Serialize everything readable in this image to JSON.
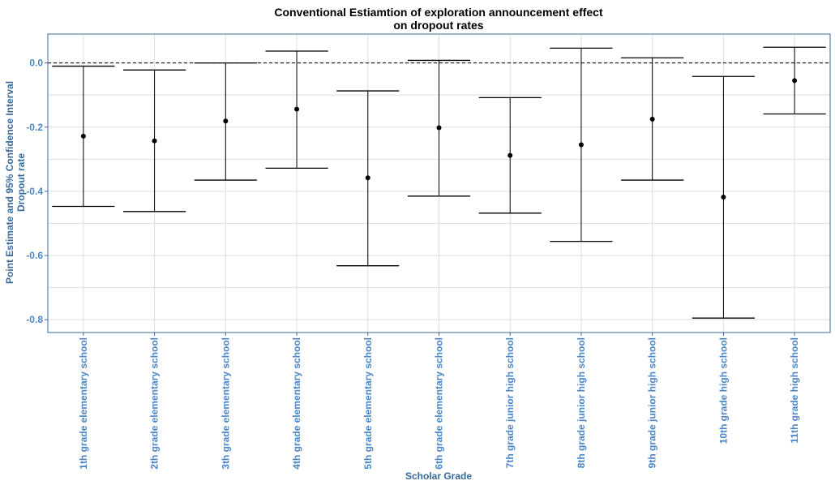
{
  "chart_data": {
    "type": "errorbar",
    "title": [
      "Conventional Estiamtion of exploration announcement effect",
      "on dropout rates"
    ],
    "xlabel": "Scholar Grade",
    "ylabel": [
      "Point Estimate and 95% Confidence Interval",
      "Dropout rate"
    ],
    "ylim": [
      -0.84,
      0.09
    ],
    "yticks": [
      0.0,
      -0.2,
      -0.4,
      -0.6,
      -0.8
    ],
    "ytick_labels": [
      "0.0",
      "-0.2",
      "-0.4",
      "-0.6",
      "-0.8"
    ],
    "reference_line": 0.0,
    "grid": true,
    "categories": [
      "1th grade elementary school",
      "2th grade elementary school",
      "3th grade elementary school",
      "4th grade elementary school",
      "5th grade elementary school",
      "6th grade elementary school",
      "7th grade junior high school",
      "8th grade junior high school",
      "9th grade junior high school",
      "10th grade high school",
      "11th grade high school"
    ],
    "estimates": [
      -0.228,
      -0.243,
      -0.181,
      -0.144,
      -0.358,
      -0.202,
      -0.288,
      -0.255,
      -0.175,
      -0.418,
      -0.055
    ],
    "lower": [
      -0.447,
      -0.463,
      -0.365,
      -0.328,
      -0.632,
      -0.415,
      -0.468,
      -0.556,
      -0.365,
      -0.795,
      -0.159
    ],
    "upper": [
      -0.01,
      -0.022,
      0.0,
      0.037,
      -0.087,
      0.008,
      -0.108,
      0.046,
      0.016,
      -0.042,
      0.049
    ],
    "colors": {
      "tick_label": "#4a86c8",
      "axis_title": "#3a6a9a",
      "grid": "#dddddd",
      "panel_border": "#3a6a9a",
      "mark": "#000000"
    }
  }
}
